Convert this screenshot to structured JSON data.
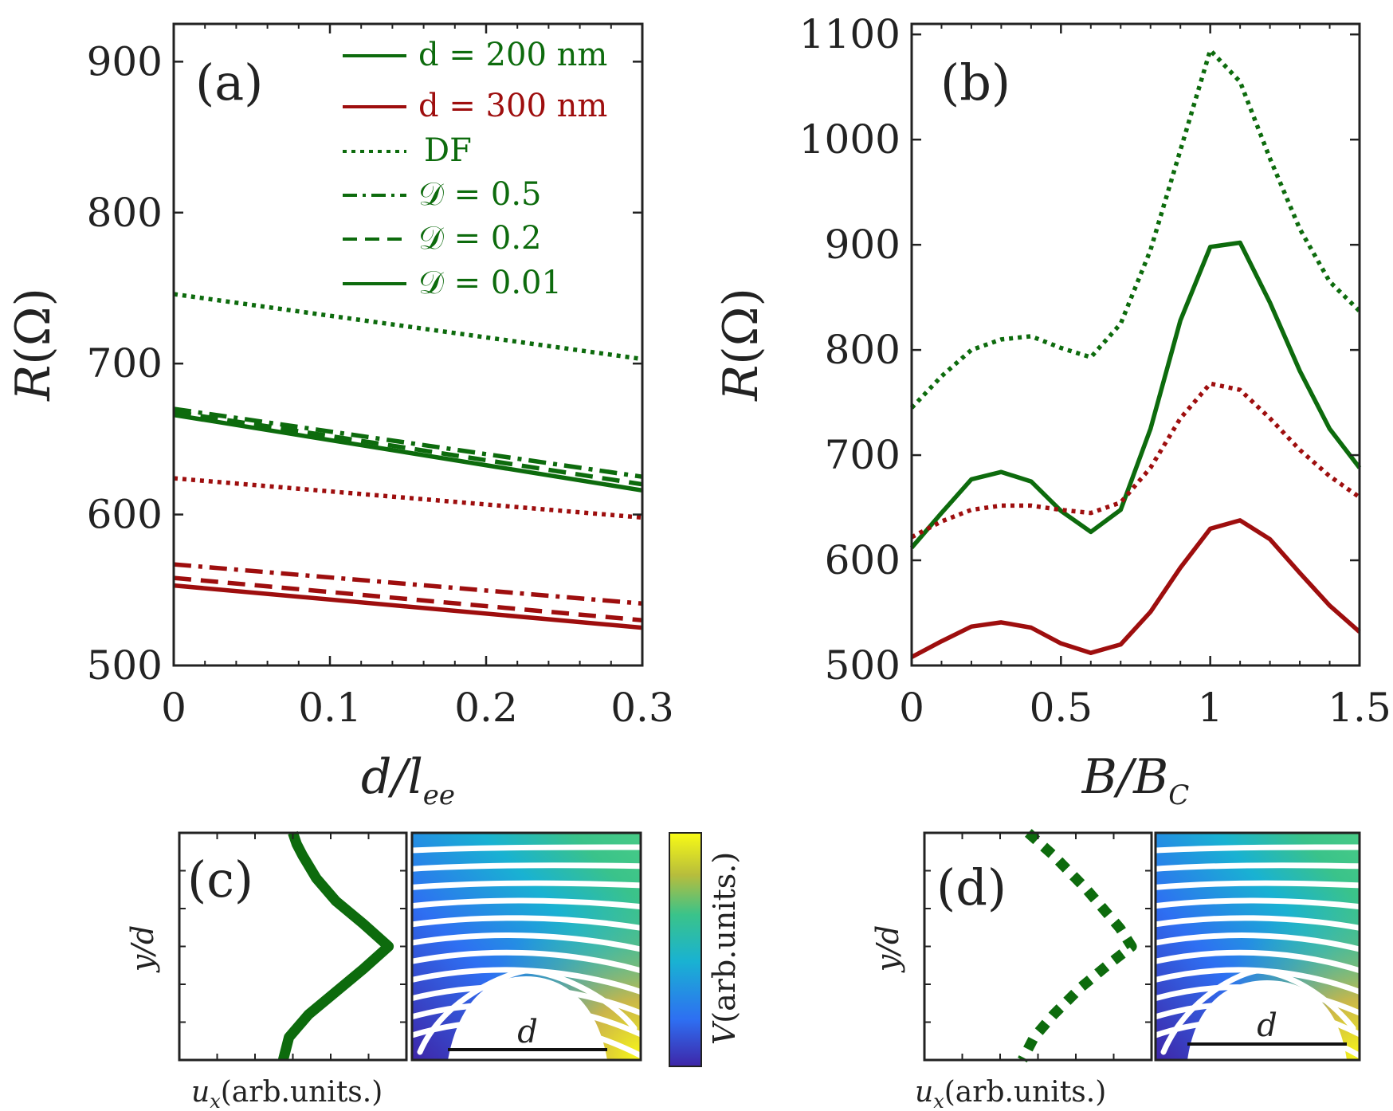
{
  "colors": {
    "green": "#0d6b0d",
    "red": "#9e0e0e",
    "axis": "#222222"
  },
  "chart_data": [
    {
      "panel": "a",
      "type": "line",
      "panel_label": "(a)",
      "xlabel": "d/l",
      "xlabel_sub": "ee",
      "ylabel": "R(Ω)",
      "xlim": [
        0,
        0.3
      ],
      "ylim": [
        500,
        925
      ],
      "xticks": [
        0,
        0.1,
        0.2,
        0.3
      ],
      "xtick_labels": [
        "0",
        "0.1",
        "0.2",
        "0.3"
      ],
      "yticks": [
        500,
        600,
        700,
        800,
        900
      ],
      "ytick_labels": [
        "500",
        "600",
        "700",
        "800",
        "900"
      ],
      "legend_placement": "top-right",
      "legend": [
        {
          "label": "d = 200 nm",
          "color": "green",
          "style": "solid"
        },
        {
          "label": "d = 300 nm",
          "color": "red",
          "style": "solid"
        },
        {
          "label": "DF",
          "color": "green",
          "style": "dotted"
        },
        {
          "label": "𝒟 = 0.5",
          "color": "green",
          "style": "dashdot"
        },
        {
          "label": "𝒟 = 0.2",
          "color": "green",
          "style": "dashed"
        },
        {
          "label": "𝒟 = 0.01",
          "color": "green",
          "style": "solid"
        }
      ],
      "series": [
        {
          "name": "d=200nm DF",
          "color": "green",
          "style": "dotted",
          "x": [
            0,
            0.3
          ],
          "y": [
            746,
            703
          ]
        },
        {
          "name": "d=200nm D=0.5",
          "color": "green",
          "style": "dashdot",
          "x": [
            0,
            0.3
          ],
          "y": [
            670,
            625
          ]
        },
        {
          "name": "d=200nm D=0.2",
          "color": "green",
          "style": "dashed",
          "x": [
            0,
            0.3
          ],
          "y": [
            668,
            620
          ]
        },
        {
          "name": "d=200nm D=0.01",
          "color": "green",
          "style": "solid",
          "x": [
            0,
            0.3
          ],
          "y": [
            666,
            616
          ]
        },
        {
          "name": "d=300nm DF",
          "color": "red",
          "style": "dotted",
          "x": [
            0,
            0.3
          ],
          "y": [
            624,
            598
          ]
        },
        {
          "name": "d=300nm D=0.5",
          "color": "red",
          "style": "dashdot",
          "x": [
            0,
            0.3
          ],
          "y": [
            567,
            541
          ]
        },
        {
          "name": "d=300nm D=0.2",
          "color": "red",
          "style": "dashed",
          "x": [
            0,
            0.3
          ],
          "y": [
            558,
            530
          ]
        },
        {
          "name": "d=300nm D=0.01",
          "color": "red",
          "style": "solid",
          "x": [
            0,
            0.3
          ],
          "y": [
            553,
            525
          ]
        }
      ]
    },
    {
      "panel": "b",
      "type": "line",
      "panel_label": "(b)",
      "xlabel": "B/B",
      "xlabel_sub": "C",
      "ylabel": "R(Ω)",
      "xlim": [
        0,
        1.5
      ],
      "ylim": [
        500,
        1110
      ],
      "xticks": [
        0,
        0.5,
        1,
        1.5
      ],
      "xtick_labels": [
        "0",
        "0.5",
        "1",
        "1.5"
      ],
      "yticks": [
        500,
        600,
        700,
        800,
        900,
        1000,
        1100
      ],
      "ytick_labels": [
        "500",
        "600",
        "700",
        "800",
        "900",
        "1000",
        "1100"
      ],
      "series": [
        {
          "name": "d=200nm DF",
          "color": "green",
          "style": "dotted",
          "x": [
            0,
            0.1,
            0.2,
            0.3,
            0.4,
            0.5,
            0.6,
            0.7,
            0.8,
            0.9,
            1.0,
            1.1,
            1.2,
            1.3,
            1.4,
            1.5
          ],
          "y": [
            745,
            775,
            800,
            810,
            813,
            802,
            793,
            825,
            895,
            990,
            1085,
            1055,
            982,
            915,
            865,
            837
          ]
        },
        {
          "name": "d=200nm D=0.01",
          "color": "green",
          "style": "solid",
          "x": [
            0,
            0.1,
            0.2,
            0.3,
            0.4,
            0.5,
            0.6,
            0.7,
            0.8,
            0.9,
            1.0,
            1.1,
            1.2,
            1.3,
            1.4,
            1.5
          ],
          "y": [
            612,
            645,
            677,
            684,
            675,
            647,
            627,
            648,
            725,
            828,
            898,
            902,
            845,
            780,
            725,
            688
          ]
        },
        {
          "name": "d=300nm DF",
          "color": "red",
          "style": "dotted",
          "x": [
            0,
            0.1,
            0.2,
            0.3,
            0.4,
            0.5,
            0.6,
            0.7,
            0.8,
            0.9,
            1.0,
            1.1,
            1.2,
            1.3,
            1.4,
            1.5
          ],
          "y": [
            622,
            637,
            648,
            652,
            652,
            648,
            645,
            655,
            688,
            735,
            768,
            762,
            735,
            705,
            680,
            660
          ]
        },
        {
          "name": "d=300nm D=0.01",
          "color": "red",
          "style": "solid",
          "x": [
            0,
            0.1,
            0.2,
            0.3,
            0.4,
            0.5,
            0.6,
            0.7,
            0.8,
            0.9,
            1.0,
            1.1,
            1.2,
            1.3,
            1.4,
            1.5
          ],
          "y": [
            508,
            523,
            537,
            541,
            536,
            521,
            512,
            520,
            551,
            593,
            630,
            638,
            620,
            588,
            557,
            532
          ]
        }
      ]
    },
    {
      "panel": "c",
      "type": "line",
      "panel_label": "(c)",
      "xlabel": "u",
      "xlabel_sub": "x",
      "xlabel_suffix": "(arb.units.)",
      "ylabel": "y/d",
      "map_label": "d",
      "colorbar_label": "V",
      "colorbar_label_suffix": "(arb.units.)",
      "profile_style": "solid",
      "profile": {
        "x": [
          0.5,
          0.52,
          0.55,
          0.62,
          0.72,
          0.86,
          0.99,
          0.86,
          0.72,
          0.58,
          0.48,
          0.45
        ],
        "y": [
          1.0,
          0.95,
          0.9,
          0.8,
          0.7,
          0.6,
          0.5,
          0.4,
          0.3,
          0.2,
          0.1,
          0.0
        ]
      }
    },
    {
      "panel": "d",
      "type": "line",
      "panel_label": "(d)",
      "xlabel": "u",
      "xlabel_sub": "x",
      "xlabel_suffix": "(arb.units.)",
      "ylabel": "y/d",
      "map_label": "d",
      "profile_style": "dotted",
      "profile": {
        "x": [
          0.45,
          0.58,
          0.75,
          0.92,
          0.98,
          0.86,
          0.72,
          0.58,
          0.48,
          0.42
        ],
        "y": [
          1.0,
          0.9,
          0.75,
          0.58,
          0.5,
          0.42,
          0.32,
          0.2,
          0.1,
          0.0
        ]
      }
    }
  ]
}
